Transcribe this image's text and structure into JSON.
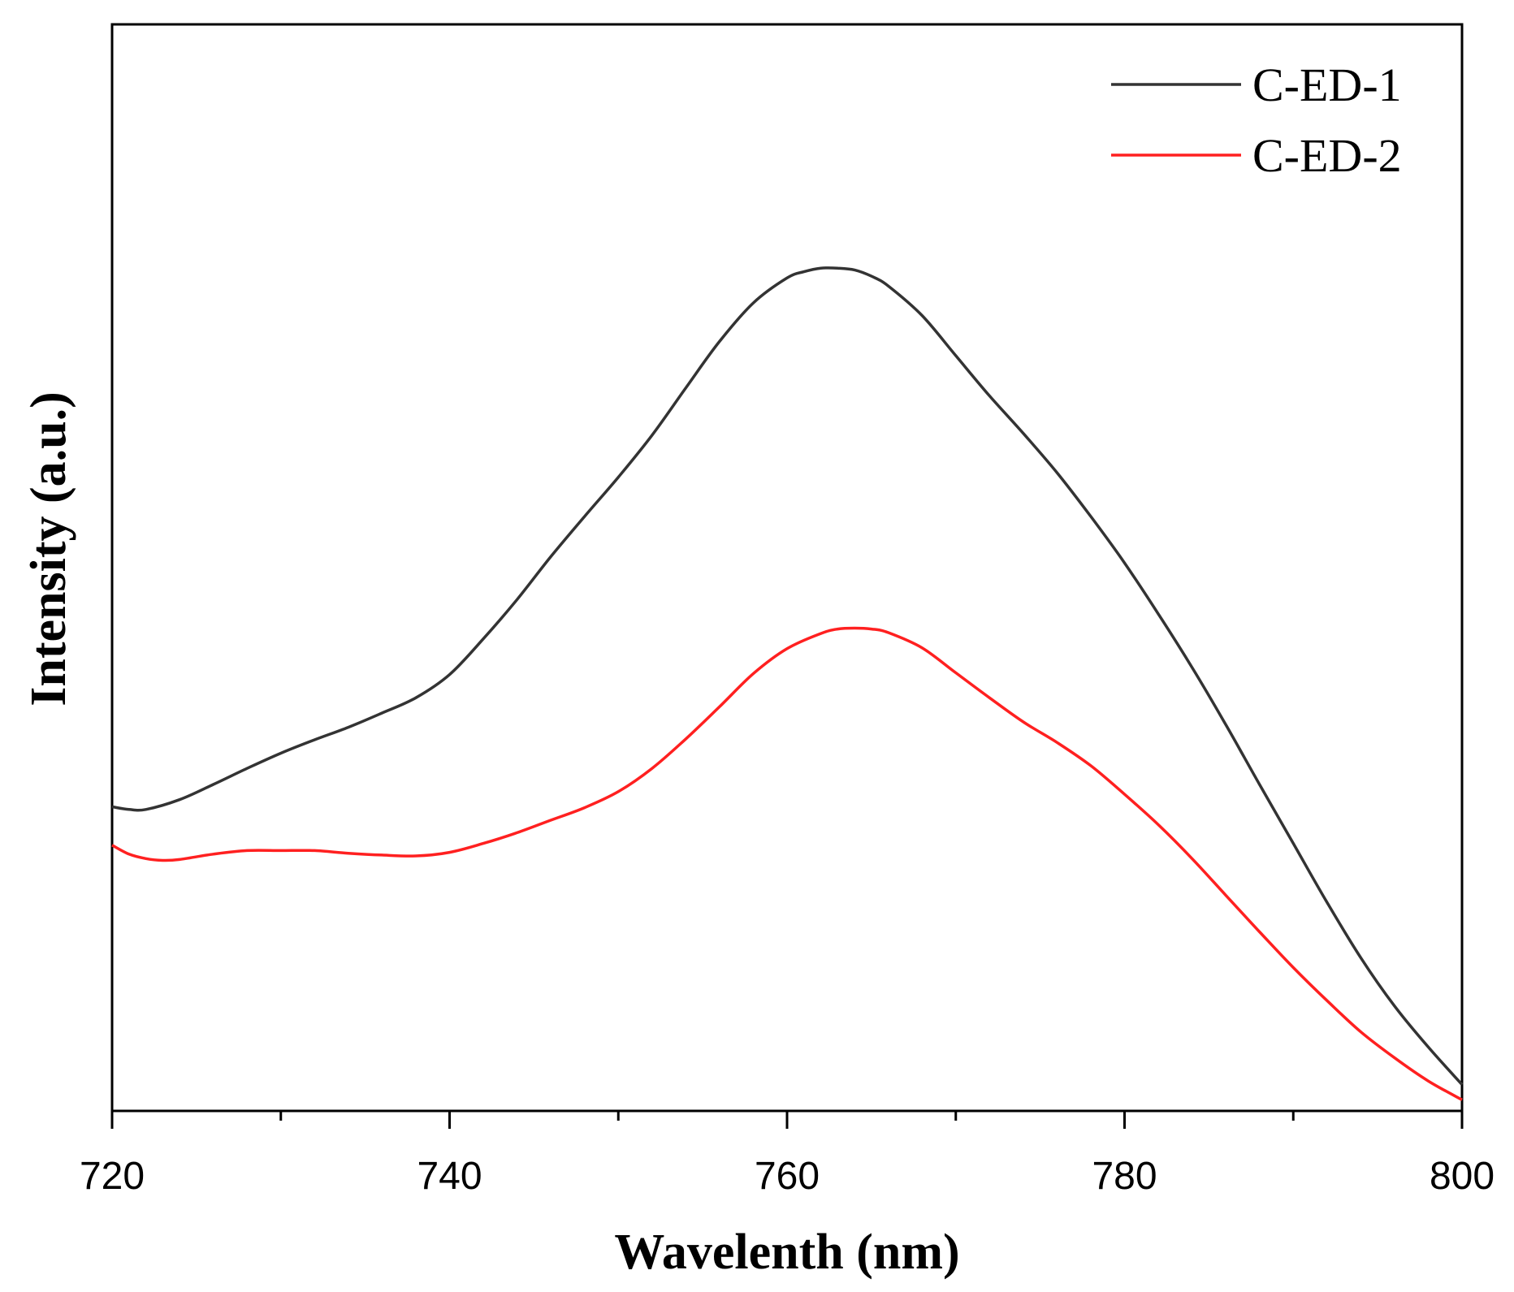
{
  "chart_data": {
    "type": "line",
    "title": "",
    "xlabel": "Wavelenth (nm)",
    "ylabel": "Intensity (a.u.)",
    "xlim": [
      720,
      800
    ],
    "ylim": [
      0,
      100
    ],
    "xticks": [
      720,
      740,
      760,
      780,
      800
    ],
    "xticks_minor": [
      730,
      750,
      770,
      790
    ],
    "yticks": [],
    "grid": false,
    "legend": "top-right",
    "series": [
      {
        "name": "C-ED-1",
        "color": "#333333",
        "x": [
          720,
          721,
          722,
          724,
          726,
          728,
          730,
          732,
          734,
          736,
          738,
          740,
          742,
          744,
          746,
          748,
          750,
          752,
          754,
          756,
          758,
          760,
          761,
          762,
          763,
          764,
          765,
          766,
          768,
          770,
          772,
          774,
          776,
          778,
          780,
          782,
          784,
          786,
          788,
          790,
          792,
          794,
          796,
          798,
          800
        ],
        "values": [
          31.5,
          31.2,
          31.2,
          32.3,
          34.0,
          35.8,
          37.5,
          39.0,
          40.4,
          42.0,
          43.7,
          46.3,
          50.3,
          54.7,
          59.5,
          64.0,
          68.4,
          73.1,
          78.4,
          83.6,
          87.9,
          90.7,
          91.4,
          91.8,
          91.8,
          91.6,
          90.9,
          89.8,
          86.5,
          82.0,
          77.5,
          73.3,
          68.9,
          64.0,
          58.8,
          53.1,
          47.1,
          40.7,
          34.0,
          27.4,
          20.8,
          14.6,
          9.2,
          4.6,
          0.4
        ]
      },
      {
        "name": "C-ED-2",
        "color": "#ff2020",
        "x": [
          720,
          721,
          722,
          723,
          724,
          726,
          728,
          730,
          732,
          734,
          736,
          738,
          740,
          742,
          744,
          746,
          748,
          750,
          752,
          754,
          756,
          758,
          760,
          762,
          763,
          764,
          765,
          766,
          768,
          770,
          772,
          774,
          776,
          778,
          780,
          782,
          784,
          786,
          788,
          790,
          792,
          794,
          796,
          798,
          800
        ],
        "values": [
          27.2,
          26.2,
          25.7,
          25.5,
          25.6,
          26.2,
          26.6,
          26.6,
          26.6,
          26.3,
          26.1,
          26.0,
          26.4,
          27.4,
          28.6,
          30.0,
          31.4,
          33.2,
          35.8,
          39.1,
          42.7,
          46.4,
          49.2,
          50.9,
          51.4,
          51.5,
          51.4,
          51.0,
          49.3,
          46.5,
          43.7,
          41.0,
          38.7,
          36.1,
          32.9,
          29.5,
          25.7,
          21.6,
          17.5,
          13.5,
          9.8,
          6.3,
          3.4,
          0.8,
          -1.3
        ]
      }
    ]
  }
}
